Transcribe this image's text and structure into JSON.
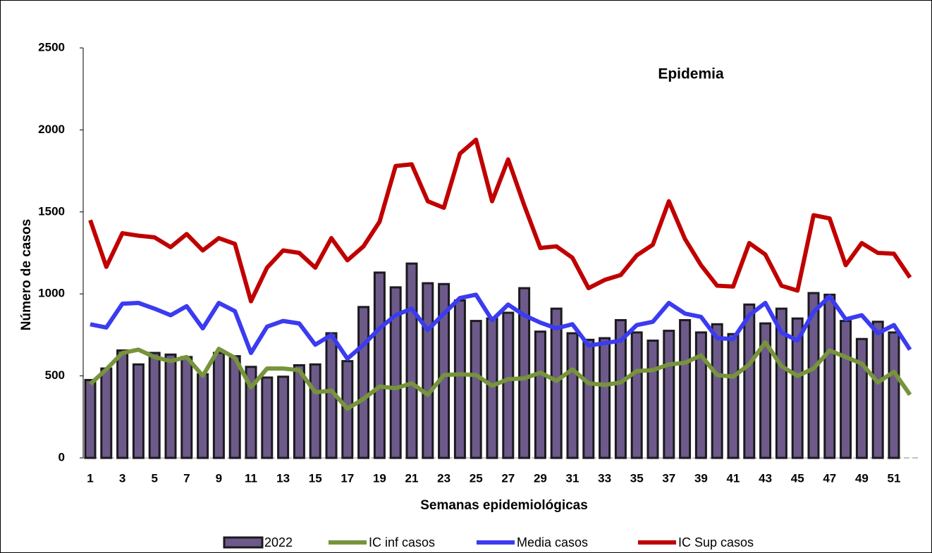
{
  "chart_data": {
    "type": "bar",
    "annotation": "Epidemia",
    "x_label": "Semanas epidemiológicas",
    "y_label": "Número de casos",
    "categories": [
      1,
      null,
      3,
      null,
      5,
      null,
      7,
      null,
      9,
      null,
      11,
      null,
      13,
      null,
      15,
      null,
      17,
      null,
      19,
      null,
      21,
      null,
      23,
      null,
      25,
      null,
      27,
      null,
      29,
      null,
      31,
      null,
      33,
      null,
      35,
      null,
      37,
      null,
      39,
      null,
      41,
      null,
      43,
      null,
      45,
      null,
      47,
      null,
      49,
      null,
      51,
      null
    ],
    "series": [
      {
        "name": "2022",
        "type": "bar",
        "color": "#6d5a8a",
        "values": [
          475,
          545,
          655,
          570,
          640,
          630,
          615,
          510,
          640,
          620,
          555,
          490,
          495,
          565,
          570,
          760,
          590,
          920,
          1130,
          1040,
          1185,
          1065,
          1060,
          960,
          835,
          850,
          885,
          1035,
          770,
          910,
          760,
          720,
          730,
          840,
          765,
          715,
          775,
          840,
          765,
          815,
          755,
          935,
          820,
          910,
          850,
          1005,
          995,
          835,
          725,
          830,
          765,
          null
        ]
      },
      {
        "name": "IC inf casos",
        "type": "line",
        "color": "#77933c",
        "values": [
          450,
          540,
          640,
          660,
          615,
          590,
          615,
          500,
          665,
          610,
          430,
          545,
          545,
          535,
          400,
          410,
          300,
          360,
          435,
          425,
          455,
          385,
          505,
          510,
          505,
          440,
          480,
          485,
          520,
          470,
          540,
          455,
          445,
          460,
          530,
          535,
          570,
          580,
          625,
          505,
          495,
          570,
          705,
          560,
          500,
          545,
          655,
          615,
          575,
          460,
          525,
          385
        ]
      },
      {
        "name": "Media casos",
        "type": "line",
        "color": "#3b3bf0",
        "values": [
          815,
          795,
          940,
          945,
          910,
          870,
          925,
          790,
          945,
          895,
          640,
          800,
          835,
          820,
          690,
          750,
          605,
          690,
          790,
          870,
          910,
          780,
          880,
          975,
          995,
          840,
          935,
          870,
          825,
          790,
          815,
          685,
          700,
          715,
          810,
          830,
          945,
          880,
          860,
          730,
          725,
          870,
          945,
          765,
          715,
          890,
          985,
          845,
          870,
          760,
          810,
          660
        ]
      },
      {
        "name": "IC Sup casos",
        "type": "line",
        "color": "#c00000",
        "values": [
          1450,
          1165,
          1370,
          1355,
          1345,
          1285,
          1365,
          1265,
          1340,
          1305,
          955,
          1160,
          1265,
          1250,
          1160,
          1340,
          1205,
          1290,
          1440,
          1780,
          1790,
          1565,
          1525,
          1855,
          1940,
          1565,
          1820,
          1540,
          1280,
          1290,
          1220,
          1035,
          1085,
          1115,
          1235,
          1300,
          1565,
          1335,
          1175,
          1050,
          1045,
          1310,
          1240,
          1050,
          1020,
          1480,
          1460,
          1175,
          1310,
          1250,
          1245,
          1100
        ]
      }
    ],
    "ylim": [
      0,
      2500
    ],
    "yticks": [
      0,
      500,
      1000,
      1500,
      2000,
      2500
    ],
    "legend": "bottom"
  }
}
